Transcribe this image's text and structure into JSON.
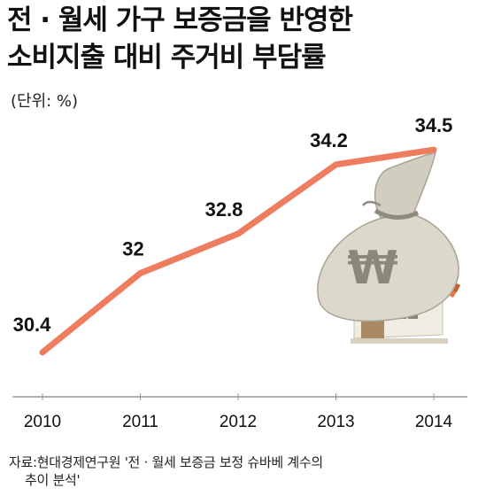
{
  "title_line1": "전 · 월세 가구 보증금을 반영한",
  "title_line2": "소비지출 대비 주거비 부담률",
  "unit": "(단위: %)",
  "source_line1": "자료:현대경제연구원 '전 · 월세 보증금 보정 슈바베 계수의",
  "source_line2": "추이 분석'",
  "colors": {
    "line": "#ee7d5f",
    "axis": "#999999"
  },
  "icon": "money-bag-on-house-icon",
  "chart_data": {
    "type": "line",
    "title": "전 · 월세 가구 보증금을 반영한 소비지출 대비 주거비 부담률",
    "ylabel": "(단위: %)",
    "xlabel": "",
    "categories": [
      "2010",
      "2011",
      "2012",
      "2013",
      "2014"
    ],
    "series": [
      {
        "values": [
          30.4,
          32,
          32.8,
          34.2,
          34.5
        ]
      }
    ],
    "data_labels": [
      "30.4",
      "32",
      "32.8",
      "34.2",
      "34.5"
    ],
    "ylim": [
      29.5,
      35.2
    ],
    "grid": false,
    "legend": "none"
  }
}
